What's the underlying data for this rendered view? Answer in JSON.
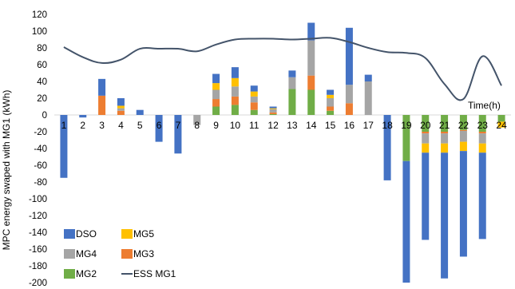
{
  "chart_data": {
    "type": "bar",
    "stacked": true,
    "xlabel": "Time(h)",
    "ylabel": "MPC energy swaped with MG1 (kWh)",
    "ylim": [
      -200,
      120
    ],
    "yticks": [
      120,
      100,
      80,
      60,
      40,
      20,
      0,
      -20,
      -40,
      -60,
      -80,
      -100,
      -120,
      -140,
      -160,
      -180,
      -200
    ],
    "grid": false,
    "legend_position": "bottom-left",
    "categories": [
      "1",
      "2",
      "3",
      "4",
      "5",
      "6",
      "7",
      "8",
      "9",
      "10",
      "11",
      "12",
      "13",
      "14",
      "15",
      "16",
      "17",
      "18",
      "19",
      "20",
      "21",
      "22",
      "23",
      "24"
    ],
    "series": [
      {
        "name": "MG2",
        "color": "#70AD47",
        "values": [
          0,
          0,
          0,
          0,
          0,
          0,
          0,
          0,
          10,
          12,
          6,
          1,
          31,
          30,
          5,
          0,
          0,
          0,
          -55,
          -20,
          -20,
          -18,
          -20,
          -8
        ]
      },
      {
        "name": "MG3",
        "color": "#ED7D31",
        "values": [
          0,
          0,
          23,
          5,
          0,
          0,
          0,
          0,
          9,
          10,
          9,
          2,
          0,
          17,
          5,
          14,
          0,
          0,
          0,
          -2,
          -2,
          -1,
          -2,
          0
        ]
      },
      {
        "name": "MG4",
        "color": "#A5A5A5",
        "values": [
          0,
          0,
          0,
          3,
          0,
          0,
          0,
          -12,
          11,
          12,
          7,
          4,
          14,
          42,
          10,
          22,
          40,
          0,
          0,
          -12,
          -12,
          -13,
          -12,
          0
        ]
      },
      {
        "name": "MG5",
        "color": "#FFC000",
        "values": [
          0,
          0,
          0,
          3,
          0,
          0,
          0,
          0,
          8,
          10,
          6,
          1,
          0,
          0,
          4,
          0,
          0,
          0,
          0,
          -11,
          -11,
          -11,
          -11,
          -7
        ]
      },
      {
        "name": "DSO",
        "color": "#4472C4",
        "values": [
          -75,
          -3,
          20,
          9,
          6,
          -32,
          -46,
          0,
          11,
          13,
          7,
          2,
          8,
          21,
          6,
          68,
          8,
          -78,
          -145,
          -104,
          -150,
          -126,
          -103,
          0
        ]
      },
      {
        "name": "ESS MG1",
        "type": "line",
        "color": "#44546A",
        "values": [
          81,
          69,
          62,
          66,
          79,
          79,
          79,
          76,
          84,
          90,
          91,
          91,
          90,
          91,
          92,
          87,
          80,
          75,
          74,
          68,
          37,
          19,
          70,
          35
        ]
      }
    ]
  }
}
